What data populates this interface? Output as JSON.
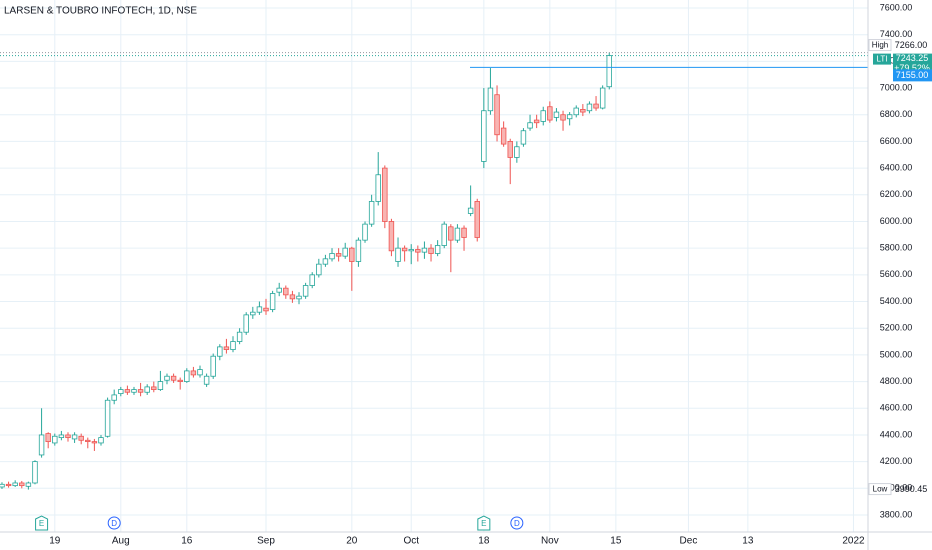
{
  "chart_data": {
    "type": "candlestick",
    "title": "LARSEN & TOUBRO INFOTECH, 1D, NSE",
    "open": [
      4010,
      4030,
      4020,
      4040,
      4015,
      4040,
      4250,
      4410,
      4340,
      4380,
      4400,
      4370,
      4390,
      4360,
      4350,
      4340,
      4390,
      4660,
      4710,
      4740,
      4720,
      4740,
      4720,
      4760,
      4740,
      4810,
      4840,
      4810,
      4800,
      4880,
      4850,
      4780,
      4840,
      4990,
      5060,
      5040,
      5100,
      5170,
      5300,
      5320,
      5350,
      5340,
      5470,
      5500,
      5450,
      5420,
      5440,
      5520,
      5600,
      5680,
      5720,
      5760,
      5740,
      5800,
      5700,
      5860,
      5980,
      6150,
      6400,
      6000,
      5700,
      5800,
      5780,
      5790,
      5770,
      5800,
      5760,
      5820,
      5960,
      5860,
      5950,
      6060,
      6150,
      6450,
      6830,
      6950,
      6700,
      6600,
      6480,
      6580,
      6700,
      6760,
      6750,
      6860,
      6780,
      6800,
      6770,
      6800,
      6840,
      6830,
      6880,
      6850,
      7010
    ],
    "high": [
      4045,
      4050,
      4060,
      4055,
      4050,
      4210,
      4600,
      4420,
      4410,
      4430,
      4420,
      4420,
      4410,
      4380,
      4370,
      4400,
      4680,
      4740,
      4760,
      4770,
      4760,
      4790,
      4780,
      4800,
      4880,
      4860,
      4860,
      4830,
      4900,
      4910,
      4920,
      4860,
      5010,
      5080,
      5120,
      5140,
      5200,
      5320,
      5360,
      5400,
      5420,
      5480,
      5540,
      5520,
      5480,
      5470,
      5540,
      5620,
      5720,
      5750,
      5800,
      5800,
      5840,
      5810,
      5880,
      6000,
      6200,
      6520,
      6420,
      6020,
      5880,
      5820,
      5830,
      5820,
      5850,
      5830,
      5860,
      6000,
      5980,
      5980,
      5970,
      6270,
      6170,
      7000,
      7150,
      7020,
      6750,
      6620,
      6600,
      6700,
      6800,
      6800,
      6860,
      6900,
      6850,
      6830,
      6820,
      6870,
      6880,
      6900,
      6940,
      7020,
      7266
    ],
    "low": [
      3995,
      4005,
      4010,
      4000,
      3990.45,
      4030,
      4230,
      4300,
      4320,
      4360,
      4350,
      4340,
      4330,
      4300,
      4280,
      4320,
      4380,
      4630,
      4690,
      4700,
      4700,
      4690,
      4700,
      4720,
      4730,
      4780,
      4790,
      4740,
      4790,
      4830,
      4830,
      4760,
      4820,
      4960,
      5010,
      5020,
      5080,
      5150,
      5270,
      5300,
      5300,
      5320,
      5440,
      5420,
      5390,
      5380,
      5420,
      5500,
      5580,
      5660,
      5700,
      5700,
      5720,
      5480,
      5660,
      5840,
      5960,
      6120,
      5950,
      5740,
      5660,
      5700,
      5680,
      5700,
      5720,
      5700,
      5740,
      5800,
      5620,
      5840,
      5780,
      6040,
      5850,
      6400,
      6800,
      6600,
      6560,
      6280,
      6440,
      6560,
      6680,
      6700,
      6720,
      6740,
      6750,
      6680,
      6720,
      6780,
      6790,
      6810,
      6830,
      6840,
      6990
    ],
    "close": [
      4030,
      4020,
      4040,
      4020,
      4040,
      4200,
      4400,
      4350,
      4390,
      4400,
      4380,
      4400,
      4360,
      4350,
      4340,
      4380,
      4660,
      4700,
      4740,
      4720,
      4740,
      4720,
      4760,
      4740,
      4800,
      4840,
      4810,
      4800,
      4880,
      4850,
      4890,
      4840,
      4990,
      5060,
      5040,
      5100,
      5170,
      5300,
      5320,
      5360,
      5330,
      5460,
      5500,
      5450,
      5420,
      5440,
      5520,
      5600,
      5680,
      5720,
      5760,
      5740,
      5800,
      5700,
      5860,
      5980,
      6150,
      6350,
      6000,
      5780,
      5800,
      5780,
      5790,
      5770,
      5800,
      5760,
      5820,
      5980,
      5860,
      5950,
      5880,
      6100,
      5880,
      6830,
      7000,
      6650,
      6580,
      6480,
      6560,
      6680,
      6740,
      6740,
      6830,
      6760,
      6820,
      6760,
      6800,
      6850,
      6820,
      6880,
      6850,
      7000,
      7243.25
    ],
    "up_color": "#26a69a",
    "down_color": "#ef5350",
    "xlim": [
      -0.3,
      131.2
    ],
    "xticks": [
      {
        "value": 8,
        "label": "19"
      },
      {
        "value": 18,
        "label": "Aug"
      },
      {
        "value": 28,
        "label": "16"
      },
      {
        "value": 40,
        "label": "Sep"
      },
      {
        "value": 53,
        "label": "20"
      },
      {
        "value": 62,
        "label": "Oct"
      },
      {
        "value": 73,
        "label": "18"
      },
      {
        "value": 83,
        "label": "Nov"
      },
      {
        "value": 93,
        "label": "15"
      },
      {
        "value": 104,
        "label": "Dec"
      },
      {
        "value": 113,
        "label": "13"
      },
      {
        "value": 129,
        "label": "2022"
      }
    ],
    "ylim": [
      3680,
      7660
    ],
    "yticks": [
      {
        "value": 3800,
        "label": "3800.00"
      },
      {
        "value": 4000,
        "label": "4000.00"
      },
      {
        "value": 4200,
        "label": "4200.00"
      },
      {
        "value": 4400,
        "label": "4400.00"
      },
      {
        "value": 4600,
        "label": "4600.00"
      },
      {
        "value": 4800,
        "label": "4800.00"
      },
      {
        "value": 5000,
        "label": "5000.00"
      },
      {
        "value": 5200,
        "label": "5200.00"
      },
      {
        "value": 5400,
        "label": "5400.00"
      },
      {
        "value": 5600,
        "label": "5600.00"
      },
      {
        "value": 5800,
        "label": "5800.00"
      },
      {
        "value": 6000,
        "label": "6000.00"
      },
      {
        "value": 6200,
        "label": "6200.00"
      },
      {
        "value": 6400,
        "label": "6400.00"
      },
      {
        "value": 6600,
        "label": "6600.00"
      },
      {
        "value": 6800,
        "label": "6800.00"
      },
      {
        "value": 7000,
        "label": "7000.00"
      },
      {
        "value": 7200,
        "label": "7200.00"
      },
      {
        "value": 7400,
        "label": "7400.00"
      },
      {
        "value": 7600,
        "label": "7600.00"
      }
    ],
    "grid": true,
    "events": [
      {
        "label": "E",
        "x": 6
      },
      {
        "label": "D",
        "x": 17
      },
      {
        "label": "E",
        "x": 73
      },
      {
        "label": "D",
        "x": 78
      }
    ],
    "high_label": {
      "name": "High",
      "value": 7266,
      "label": "7266.00"
    },
    "last_label": {
      "name": "LTI",
      "value": 7243.25,
      "label": "7243.25",
      "change": "+79.52%"
    },
    "level_label": {
      "value": 7155,
      "label": "7155.00"
    },
    "low_label": {
      "name": "Low",
      "value": 3990.45,
      "label": "3990.45"
    }
  }
}
